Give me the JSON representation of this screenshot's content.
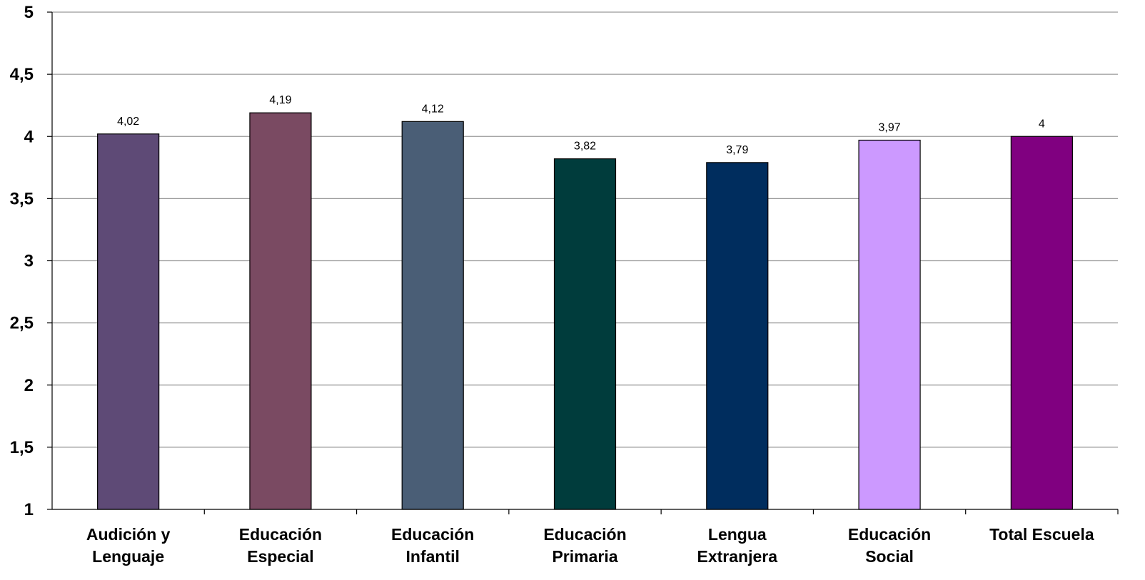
{
  "chart_data": {
    "type": "bar",
    "title": "",
    "xlabel": "",
    "ylabel": "",
    "ylim": [
      1,
      5
    ],
    "yticks": [
      "1",
      "1,5",
      "2",
      "2,5",
      "3",
      "3,5",
      "4",
      "4,5",
      "5"
    ],
    "ytick_values": [
      1,
      1.5,
      2,
      2.5,
      3,
      3.5,
      4,
      4.5,
      5
    ],
    "grid": true,
    "categories": [
      [
        "Audición y",
        "Lenguaje"
      ],
      [
        "Educación",
        "Especial"
      ],
      [
        "Educación",
        "Infantil"
      ],
      [
        "Educación",
        "Primaria"
      ],
      [
        "Lengua",
        "Extranjera"
      ],
      [
        "Educación",
        "Social"
      ],
      [
        "Total Escuela"
      ]
    ],
    "values": [
      4.02,
      4.19,
      4.12,
      3.82,
      3.79,
      3.97,
      4
    ],
    "value_labels": [
      "4,02",
      "4,19",
      "4,12",
      "3,82",
      "3,79",
      "3,97",
      "4"
    ],
    "colors": [
      "#5e4a76",
      "#7a4a62",
      "#4a5e76",
      "#003c3c",
      "#002d5e",
      "#cc99ff",
      "#800080"
    ],
    "gridline_color": "#999999"
  }
}
